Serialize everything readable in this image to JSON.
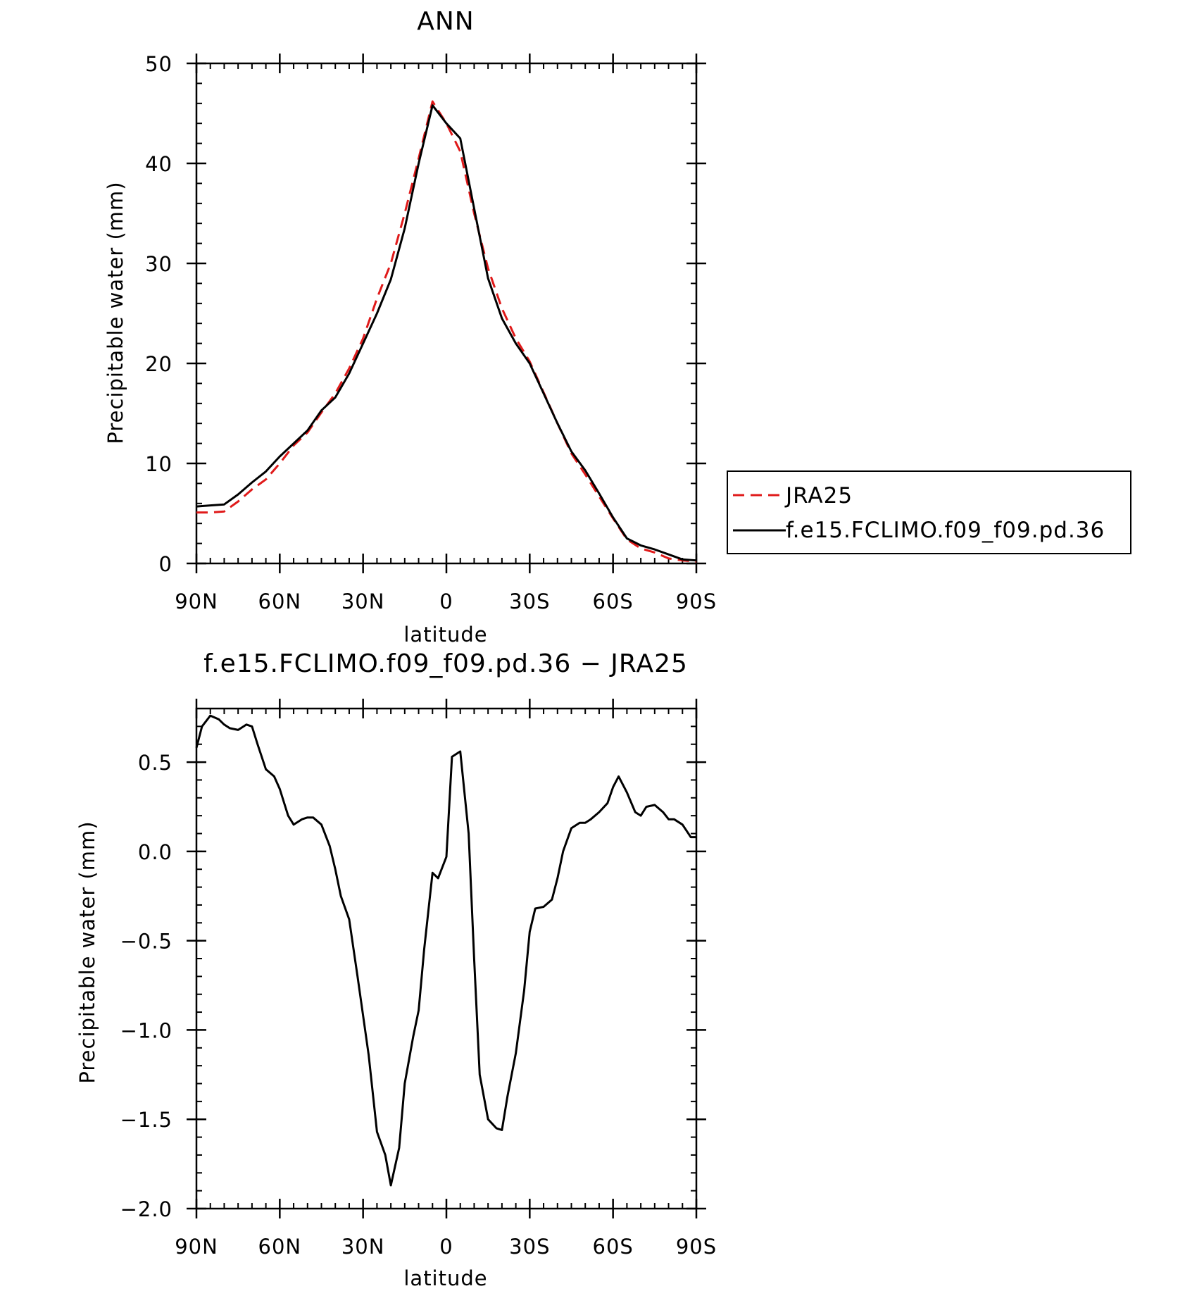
{
  "chart_data": [
    {
      "type": "line",
      "title": "ANN",
      "xlabel": "latitude",
      "ylabel": "Precipitable water (mm)",
      "xlim": [
        90,
        -90
      ],
      "ylim": [
        0,
        50
      ],
      "x_ticks": [
        {
          "value": 90,
          "label": "90N"
        },
        {
          "value": 60,
          "label": "60N"
        },
        {
          "value": 30,
          "label": "30N"
        },
        {
          "value": 0,
          "label": "0"
        },
        {
          "value": -30,
          "label": "30S"
        },
        {
          "value": -60,
          "label": "60S"
        },
        {
          "value": -90,
          "label": "90S"
        }
      ],
      "y_ticks": [
        {
          "value": 0,
          "label": "0"
        },
        {
          "value": 10,
          "label": "10"
        },
        {
          "value": 20,
          "label": "20"
        },
        {
          "value": 30,
          "label": "30"
        },
        {
          "value": 40,
          "label": "40"
        },
        {
          "value": 50,
          "label": "50"
        }
      ],
      "legend": "right",
      "grid": false,
      "series": [
        {
          "name": "JRA25",
          "color": "#e01a1a",
          "dash": true,
          "x": [
            90,
            85,
            80,
            75,
            70,
            65,
            60,
            55,
            50,
            45,
            40,
            35,
            30,
            25,
            20,
            15,
            10,
            5,
            0,
            -5,
            -10,
            -15,
            -20,
            -25,
            -30,
            -35,
            -40,
            -45,
            -50,
            -55,
            -60,
            -65,
            -70,
            -75,
            -80,
            -85,
            -90
          ],
          "values": [
            5.1,
            5.1,
            5.2,
            6.2,
            7.4,
            8.4,
            10.0,
            11.8,
            13.1,
            15.1,
            17.0,
            19.5,
            22.5,
            26.5,
            30.0,
            35.0,
            40.5,
            46.2,
            44.0,
            41.2,
            35.0,
            29.5,
            25.5,
            22.5,
            20.2,
            17.1,
            14.0,
            11.0,
            8.9,
            6.7,
            4.5,
            2.4,
            1.5,
            1.1,
            0.5,
            0.3,
            0.2
          ]
        },
        {
          "name": "f.e15.FCLIMO.f09_f09.pd.36",
          "color": "#000000",
          "dash": false,
          "x": [
            90,
            85,
            80,
            75,
            70,
            65,
            60,
            55,
            50,
            45,
            40,
            35,
            30,
            25,
            20,
            15,
            10,
            5,
            0,
            -5,
            -10,
            -15,
            -20,
            -25,
            -30,
            -35,
            -40,
            -45,
            -50,
            -55,
            -60,
            -65,
            -70,
            -75,
            -80,
            -85,
            -90
          ],
          "values": [
            5.7,
            5.8,
            5.9,
            6.9,
            8.1,
            9.2,
            10.7,
            12.0,
            13.3,
            15.3,
            16.6,
            19.0,
            22.0,
            25.0,
            28.4,
            33.5,
            40.0,
            45.8,
            44.0,
            42.5,
            35.5,
            28.5,
            24.5,
            22.0,
            20.0,
            17.0,
            14.0,
            11.2,
            9.3,
            7.0,
            4.6,
            2.5,
            1.8,
            1.4,
            0.9,
            0.4,
            0.3
          ]
        }
      ]
    },
    {
      "type": "line",
      "title": "f.e15.FCLIMO.f09_f09.pd.36 − JRA25",
      "xlabel": "latitude",
      "ylabel": "Precipitable water (mm)",
      "xlim": [
        90,
        -90
      ],
      "ylim": [
        -2.0,
        0.8
      ],
      "x_ticks": [
        {
          "value": 90,
          "label": "90N"
        },
        {
          "value": 60,
          "label": "60N"
        },
        {
          "value": 30,
          "label": "30N"
        },
        {
          "value": 0,
          "label": "0"
        },
        {
          "value": -30,
          "label": "30S"
        },
        {
          "value": -60,
          "label": "60S"
        },
        {
          "value": -90,
          "label": "90S"
        }
      ],
      "y_ticks": [
        {
          "value": 0.5,
          "label": "0.5"
        },
        {
          "value": 0.0,
          "label": "0.0"
        },
        {
          "value": -0.5,
          "label": "−0.5"
        },
        {
          "value": -1.0,
          "label": "−1.0"
        },
        {
          "value": -1.5,
          "label": "−1.5"
        },
        {
          "value": -2.0,
          "label": "−2.0"
        }
      ],
      "grid": false,
      "series": [
        {
          "color": "#000000",
          "dash": false,
          "x": [
            90,
            88,
            85,
            82,
            80,
            78,
            75,
            72,
            70,
            68,
            65,
            62,
            60,
            57,
            55,
            52,
            50,
            48,
            45,
            42,
            40,
            38,
            35,
            32,
            30,
            28,
            25,
            22,
            20,
            17,
            15,
            12,
            10,
            8,
            5,
            3,
            0,
            -2,
            -5,
            -8,
            -10,
            -12,
            -15,
            -18,
            -20,
            -22,
            -25,
            -28,
            -30,
            -32,
            -35,
            -38,
            -40,
            -42,
            -45,
            -48,
            -50,
            -52,
            -55,
            -58,
            -60,
            -62,
            -65,
            -68,
            -70,
            -72,
            -75,
            -78,
            -80,
            -82,
            -85,
            -88,
            -90
          ],
          "values": [
            0.58,
            0.7,
            0.76,
            0.74,
            0.71,
            0.69,
            0.68,
            0.71,
            0.7,
            0.6,
            0.46,
            0.42,
            0.35,
            0.2,
            0.15,
            0.18,
            0.19,
            0.19,
            0.15,
            0.03,
            -0.1,
            -0.25,
            -0.38,
            -0.7,
            -0.92,
            -1.14,
            -1.57,
            -1.7,
            -1.87,
            -1.66,
            -1.3,
            -1.04,
            -0.89,
            -0.55,
            -0.12,
            -0.15,
            -0.03,
            0.53,
            0.56,
            0.1,
            -0.6,
            -1.25,
            -1.5,
            -1.55,
            -1.56,
            -1.37,
            -1.13,
            -0.78,
            -0.45,
            -0.32,
            -0.31,
            -0.27,
            -0.15,
            0.0,
            0.13,
            0.16,
            0.16,
            0.18,
            0.22,
            0.27,
            0.36,
            0.42,
            0.33,
            0.22,
            0.2,
            0.25,
            0.26,
            0.22,
            0.18,
            0.18,
            0.15,
            0.08,
            0.08
          ]
        }
      ]
    }
  ]
}
